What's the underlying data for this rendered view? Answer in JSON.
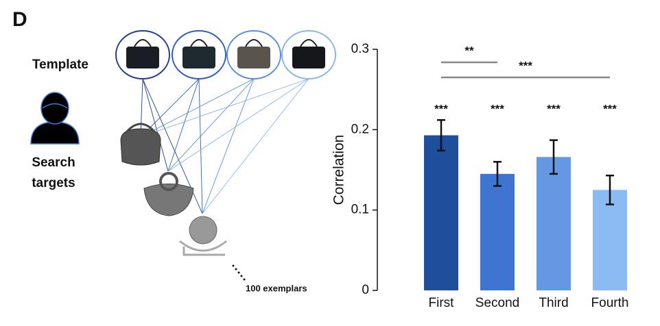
{
  "diagram": {
    "panel_label": "D",
    "template_label": "Template",
    "search_label": [
      "Search",
      "targets"
    ],
    "exemplar_note": "100 exemplars"
  },
  "chart_data": {
    "type": "bar",
    "ylabel": "Correlation",
    "categories": [
      "First",
      "Second",
      "Third",
      "Fourth"
    ],
    "values": [
      0.193,
      0.145,
      0.166,
      0.125
    ],
    "errors": [
      0.019,
      0.015,
      0.021,
      0.018
    ],
    "colors": [
      "#1f4e9c",
      "#3f74d0",
      "#6498e2",
      "#8cbaf2"
    ],
    "significance": [
      "***",
      "***",
      "***",
      "***"
    ],
    "comparisons": [
      {
        "from": "First",
        "to": "Second",
        "label": "**"
      },
      {
        "from": "First",
        "to": "Fourth",
        "label": "***"
      }
    ],
    "ylim": [
      0,
      0.3
    ],
    "yticks": [
      0,
      0.1,
      0.2,
      0.3
    ]
  }
}
